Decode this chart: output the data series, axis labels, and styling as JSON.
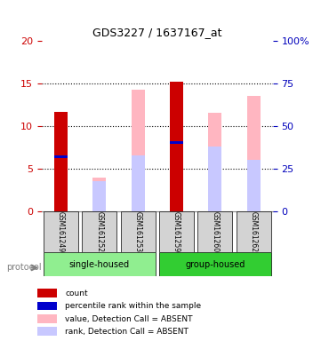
{
  "title": "GDS3227 / 1637167_at",
  "samples": [
    "GSM161249",
    "GSM161252",
    "GSM161253",
    "GSM161259",
    "GSM161260",
    "GSM161262"
  ],
  "red_bars": [
    11.7,
    0,
    0,
    15.2,
    0,
    0
  ],
  "blue_bars": [
    6.4,
    0,
    0,
    8.1,
    0,
    0
  ],
  "pink_bars": [
    0,
    4.0,
    14.3,
    0,
    11.6,
    13.5
  ],
  "lavender_bars": [
    0,
    3.6,
    6.6,
    0,
    7.6,
    6.0
  ],
  "ylim_left": [
    0,
    20
  ],
  "ylim_right": [
    0,
    100
  ],
  "yticks_left": [
    0,
    5,
    10,
    15,
    20
  ],
  "yticks_right": [
    0,
    25,
    50,
    75,
    100
  ],
  "yticklabels_right": [
    "0",
    "25",
    "50",
    "75",
    "100%"
  ],
  "bar_width": 0.35,
  "red_color": "#CC0000",
  "blue_color": "#0000CC",
  "pink_color": "#FFB6C1",
  "lavender_color": "#C8C8FF",
  "bg_label": "#D3D3D3",
  "left_tick_color": "#CC0000",
  "right_tick_color": "#0000BB",
  "single_housed_color": "#90EE90",
  "group_housed_color": "#32CD32",
  "legend_items": [
    {
      "color": "#CC0000",
      "label": "count"
    },
    {
      "color": "#0000CC",
      "label": "percentile rank within the sample"
    },
    {
      "color": "#FFB6C1",
      "label": "value, Detection Call = ABSENT"
    },
    {
      "color": "#C8C8FF",
      "label": "rank, Detection Call = ABSENT"
    }
  ]
}
